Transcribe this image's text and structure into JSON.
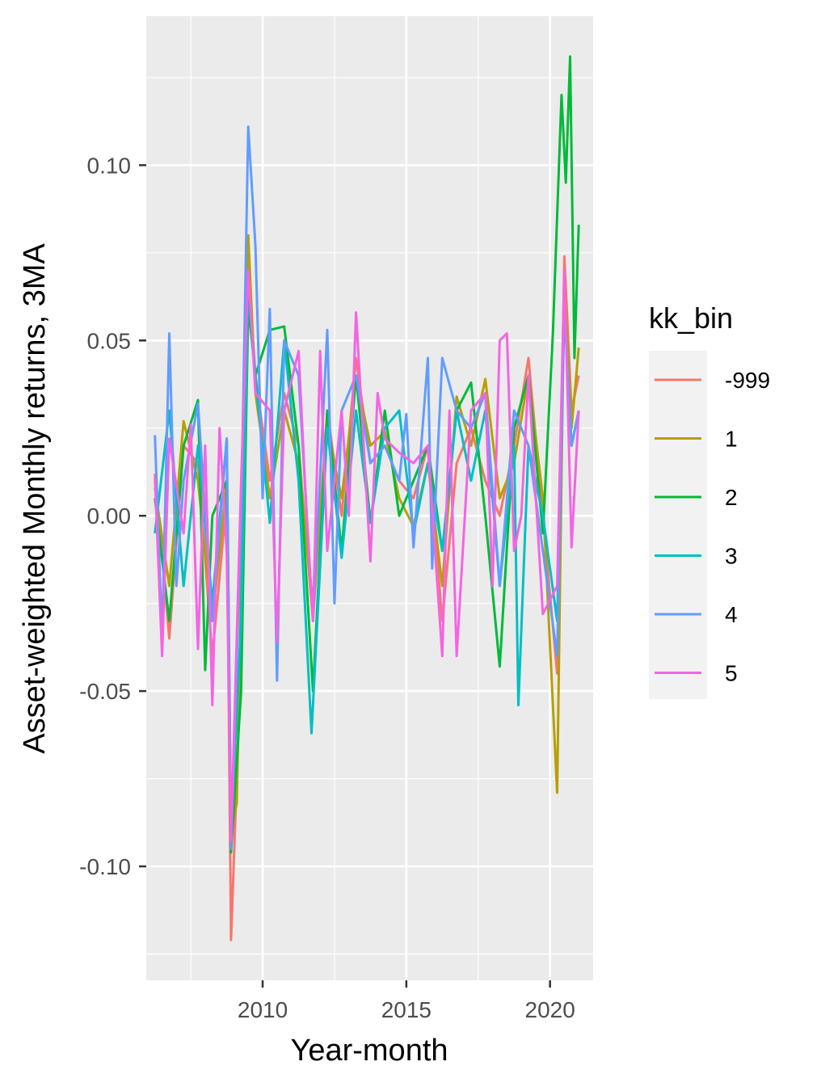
{
  "chart_data": {
    "type": "line",
    "xlabel": "Year-month",
    "ylabel": "Asset-weighted Monthly returns, 3MA",
    "xlim": [
      2005.95,
      2021.5
    ],
    "ylim": [
      -0.1325,
      0.1425
    ],
    "x_ticks": [
      2010,
      2015,
      2020
    ],
    "x_tick_labels": [
      "2010",
      "2015",
      "2020"
    ],
    "y_ticks": [
      -0.1,
      -0.05,
      0.0,
      0.05,
      0.1
    ],
    "y_tick_labels": [
      "-0.10",
      "-0.05",
      "0.00",
      "0.05",
      "0.10"
    ],
    "grid": true,
    "legend": {
      "title": "kk_bin",
      "position": "right"
    },
    "series": [
      {
        "name": "-999",
        "color": "#F8766D",
        "x": [
          2006.25,
          2006.75,
          2007.25,
          2007.75,
          2008.25,
          2008.75,
          2008.9,
          2009.25,
          2009.5,
          2009.75,
          2010.25,
          2010.75,
          2011.25,
          2011.75,
          2012.25,
          2012.75,
          2013.25,
          2013.75,
          2014.25,
          2014.75,
          2015.25,
          2015.75,
          2016.25,
          2016.75,
          2017.25,
          2017.75,
          2018.25,
          2018.75,
          2019.25,
          2019.75,
          2020.25,
          2020.5,
          2020.75,
          2021.0
        ],
        "values": [
          0.012,
          -0.035,
          0.02,
          0.015,
          -0.04,
          0.005,
          -0.121,
          -0.04,
          0.07,
          0.04,
          0.01,
          0.035,
          0.02,
          -0.03,
          0.03,
          0.0,
          0.045,
          0.015,
          0.02,
          0.01,
          0.005,
          0.02,
          -0.03,
          0.015,
          0.025,
          0.01,
          0.0,
          0.02,
          0.045,
          0.0,
          -0.045,
          0.074,
          0.03,
          0.04
        ]
      },
      {
        "name": "1",
        "color": "#B79F00",
        "x": [
          2006.25,
          2006.75,
          2007.25,
          2007.75,
          2008.25,
          2008.75,
          2008.9,
          2009.1,
          2009.5,
          2009.75,
          2010.25,
          2010.75,
          2011.25,
          2011.75,
          2012.25,
          2012.75,
          2013.25,
          2013.75,
          2014.25,
          2014.75,
          2015.25,
          2015.75,
          2016.25,
          2016.75,
          2017.25,
          2017.75,
          2018.25,
          2018.75,
          2019.25,
          2019.75,
          2020.25,
          2020.5,
          2020.75,
          2021.0
        ],
        "values": [
          0.008,
          -0.02,
          0.027,
          0.01,
          -0.03,
          0.01,
          -0.09,
          -0.082,
          0.08,
          0.035,
          0.005,
          0.03,
          0.015,
          -0.025,
          0.025,
          0.005,
          0.04,
          0.02,
          0.024,
          0.005,
          -0.003,
          0.015,
          -0.02,
          0.034,
          0.02,
          0.039,
          0.005,
          0.015,
          0.04,
          0.005,
          -0.079,
          0.07,
          0.025,
          0.048
        ]
      },
      {
        "name": "2",
        "color": "#00BA38",
        "x": [
          2006.25,
          2006.75,
          2007.25,
          2007.75,
          2008.0,
          2008.25,
          2008.75,
          2008.9,
          2009.25,
          2009.5,
          2009.75,
          2010.25,
          2010.75,
          2011.25,
          2011.75,
          2012.25,
          2012.75,
          2013.25,
          2013.75,
          2014.25,
          2014.75,
          2015.25,
          2015.75,
          2016.25,
          2016.75,
          2017.25,
          2017.75,
          2018.25,
          2018.75,
          2019.25,
          2019.75,
          2020.1,
          2020.4,
          2020.55,
          2020.7,
          2020.85,
          2021.0
        ],
        "values": [
          0.005,
          -0.03,
          0.02,
          0.033,
          -0.044,
          0.0,
          0.01,
          -0.096,
          -0.05,
          0.06,
          0.04,
          0.053,
          0.054,
          0.02,
          -0.05,
          0.03,
          -0.01,
          0.04,
          -0.002,
          0.03,
          0.0,
          0.01,
          0.02,
          -0.01,
          0.03,
          0.038,
          0.0,
          -0.043,
          0.025,
          0.04,
          -0.005,
          0.052,
          0.12,
          0.095,
          0.131,
          0.045,
          0.083
        ]
      },
      {
        "name": "3",
        "color": "#00BFC4",
        "x": [
          2006.25,
          2006.75,
          2007.25,
          2007.75,
          2008.25,
          2008.75,
          2008.9,
          2009.25,
          2009.5,
          2009.75,
          2010.25,
          2010.75,
          2011.25,
          2011.7,
          2012.25,
          2012.75,
          2013.25,
          2013.75,
          2014.25,
          2014.75,
          2015.25,
          2015.75,
          2016.25,
          2016.75,
          2017.25,
          2017.75,
          2018.25,
          2018.75,
          2018.9,
          2019.25,
          2019.75,
          2020.25,
          2020.5,
          2020.75,
          2021.0
        ],
        "values": [
          -0.005,
          0.03,
          -0.02,
          0.02,
          -0.025,
          0.022,
          -0.09,
          -0.03,
          0.065,
          0.04,
          -0.002,
          0.05,
          0.01,
          -0.062,
          0.025,
          -0.012,
          0.03,
          -0.002,
          0.025,
          0.03,
          -0.005,
          0.015,
          -0.01,
          0.03,
          0.01,
          0.03,
          -0.02,
          0.02,
          -0.054,
          0.02,
          0.0,
          -0.03,
          0.06,
          0.02,
          0.03
        ]
      },
      {
        "name": "4",
        "color": "#619CFF",
        "x": [
          2006.25,
          2006.5,
          2006.75,
          2007.0,
          2007.25,
          2007.75,
          2008.25,
          2008.75,
          2008.9,
          2009.25,
          2009.5,
          2009.75,
          2010.0,
          2010.25,
          2010.5,
          2010.75,
          2011.25,
          2011.75,
          2012.25,
          2012.5,
          2012.75,
          2013.25,
          2013.75,
          2014.25,
          2014.75,
          2015.0,
          2015.25,
          2015.75,
          2015.9,
          2016.25,
          2016.75,
          2017.25,
          2017.75,
          2018.25,
          2018.75,
          2019.25,
          2019.75,
          2020.25,
          2020.5,
          2020.75,
          2021.0
        ],
        "values": [
          0.023,
          -0.035,
          0.052,
          -0.02,
          0.01,
          0.032,
          -0.03,
          0.022,
          -0.095,
          0.0,
          0.111,
          0.077,
          0.005,
          0.059,
          -0.047,
          0.05,
          0.04,
          -0.03,
          0.053,
          -0.025,
          0.03,
          0.04,
          0.015,
          0.02,
          0.01,
          0.029,
          -0.009,
          0.045,
          -0.015,
          0.045,
          0.03,
          0.025,
          0.035,
          -0.02,
          0.03,
          0.02,
          -0.01,
          -0.04,
          0.06,
          0.02,
          0.03
        ]
      },
      {
        "name": "5",
        "color": "#F564E3",
        "x": [
          2006.25,
          2006.5,
          2006.75,
          2007.25,
          2007.5,
          2007.75,
          2008.0,
          2008.25,
          2008.5,
          2008.75,
          2008.9,
          2009.25,
          2009.5,
          2009.75,
          2010.25,
          2010.5,
          2010.75,
          2011.25,
          2011.5,
          2011.75,
          2012.0,
          2012.25,
          2012.75,
          2013.0,
          2013.25,
          2013.75,
          2014.0,
          2014.25,
          2014.75,
          2015.25,
          2015.75,
          2016.25,
          2016.5,
          2016.75,
          2017.25,
          2017.75,
          2018.0,
          2018.25,
          2018.5,
          2018.75,
          2019.0,
          2019.25,
          2019.75,
          2020.25,
          2020.5,
          2020.75,
          2021.0
        ],
        "values": [
          0.011,
          -0.04,
          0.022,
          -0.005,
          0.026,
          -0.038,
          0.02,
          -0.054,
          0.025,
          -0.01,
          -0.093,
          0.01,
          0.07,
          0.035,
          0.03,
          -0.036,
          0.03,
          0.047,
          0.005,
          -0.03,
          0.047,
          -0.01,
          0.03,
          0.0,
          0.058,
          -0.013,
          0.035,
          0.022,
          0.018,
          0.015,
          0.02,
          -0.04,
          0.03,
          -0.04,
          0.03,
          0.035,
          -0.02,
          0.05,
          0.052,
          -0.01,
          0.0,
          0.04,
          -0.028,
          -0.02,
          0.07,
          -0.009,
          0.03
        ]
      }
    ]
  }
}
